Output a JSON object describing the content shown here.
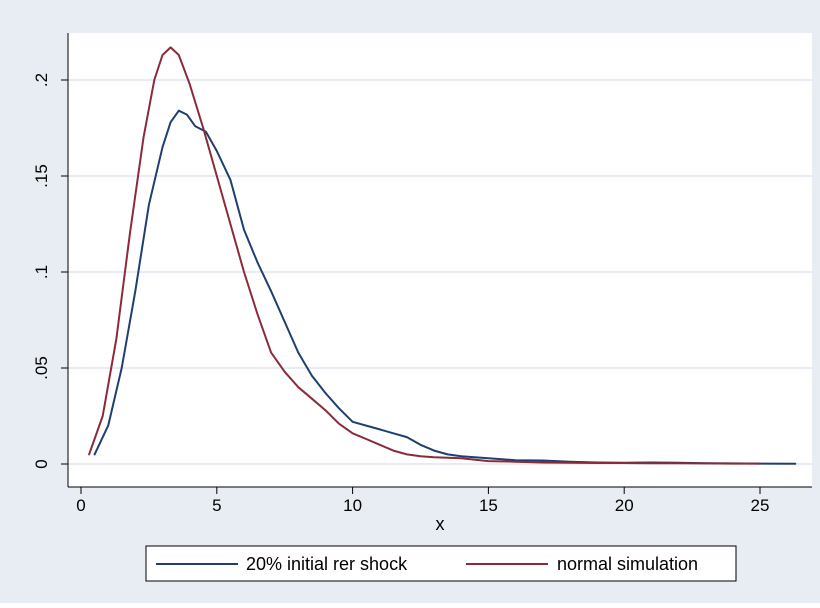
{
  "chart_data": {
    "type": "line",
    "title": "",
    "xlabel": "x",
    "ylabel": "",
    "xlim": [
      0,
      26.5
    ],
    "ylim": [
      0,
      0.22
    ],
    "x_ticks": [
      0,
      5,
      10,
      15,
      20,
      25
    ],
    "x_tick_labels": [
      "0",
      "5",
      "10",
      "15",
      "20",
      "25"
    ],
    "y_ticks": [
      0,
      0.05,
      0.1,
      0.15,
      0.2
    ],
    "y_tick_labels": [
      "0",
      ".05",
      ".1",
      ".15",
      ".2"
    ],
    "grid": "horizontal",
    "legend_position": "bottom",
    "background": "#e8edf3",
    "series": [
      {
        "name": "20% initial rer shock",
        "color": "#1f3f6e",
        "points": [
          [
            0.5,
            0.005
          ],
          [
            1.0,
            0.02
          ],
          [
            1.5,
            0.05
          ],
          [
            2.0,
            0.09
          ],
          [
            2.5,
            0.135
          ],
          [
            3.0,
            0.165
          ],
          [
            3.3,
            0.178
          ],
          [
            3.6,
            0.184
          ],
          [
            3.9,
            0.182
          ],
          [
            4.2,
            0.176
          ],
          [
            4.6,
            0.173
          ],
          [
            5.0,
            0.163
          ],
          [
            5.5,
            0.148
          ],
          [
            6.0,
            0.122
          ],
          [
            6.5,
            0.105
          ],
          [
            7.0,
            0.09
          ],
          [
            7.5,
            0.074
          ],
          [
            8.0,
            0.058
          ],
          [
            8.5,
            0.046
          ],
          [
            9.0,
            0.037
          ],
          [
            9.5,
            0.029
          ],
          [
            10.0,
            0.022
          ],
          [
            10.5,
            0.02
          ],
          [
            11.0,
            0.018
          ],
          [
            11.5,
            0.016
          ],
          [
            12.0,
            0.014
          ],
          [
            12.5,
            0.01
          ],
          [
            13.0,
            0.007
          ],
          [
            13.5,
            0.005
          ],
          [
            14.0,
            0.004
          ],
          [
            15.0,
            0.003
          ],
          [
            16.0,
            0.002
          ],
          [
            17.0,
            0.0018
          ],
          [
            18.0,
            0.0012
          ],
          [
            19.0,
            0.0008
          ],
          [
            20.0,
            0.0006
          ],
          [
            21.0,
            0.0008
          ],
          [
            22.0,
            0.0006
          ],
          [
            23.0,
            0.0004
          ],
          [
            24.0,
            0.0003
          ],
          [
            25.0,
            0.0002
          ],
          [
            26.3,
            0.0001
          ]
        ]
      },
      {
        "name": "normal simulation",
        "color": "#8b2a3a",
        "points": [
          [
            0.3,
            0.005
          ],
          [
            0.8,
            0.025
          ],
          [
            1.3,
            0.065
          ],
          [
            1.8,
            0.12
          ],
          [
            2.3,
            0.17
          ],
          [
            2.7,
            0.2
          ],
          [
            3.0,
            0.213
          ],
          [
            3.3,
            0.217
          ],
          [
            3.6,
            0.213
          ],
          [
            4.0,
            0.198
          ],
          [
            4.5,
            0.175
          ],
          [
            5.0,
            0.15
          ],
          [
            5.5,
            0.125
          ],
          [
            6.0,
            0.1
          ],
          [
            6.5,
            0.078
          ],
          [
            7.0,
            0.058
          ],
          [
            7.5,
            0.048
          ],
          [
            8.0,
            0.04
          ],
          [
            8.5,
            0.034
          ],
          [
            9.0,
            0.028
          ],
          [
            9.5,
            0.021
          ],
          [
            10.0,
            0.016
          ],
          [
            10.5,
            0.013
          ],
          [
            11.0,
            0.01
          ],
          [
            11.5,
            0.007
          ],
          [
            12.0,
            0.005
          ],
          [
            12.5,
            0.004
          ],
          [
            13.0,
            0.0035
          ],
          [
            14.0,
            0.003
          ],
          [
            15.0,
            0.0015
          ],
          [
            16.0,
            0.0012
          ],
          [
            17.0,
            0.0008
          ],
          [
            18.0,
            0.0006
          ],
          [
            19.0,
            0.0005
          ],
          [
            20.0,
            0.0005
          ],
          [
            21.0,
            0.0004
          ],
          [
            22.0,
            0.0004
          ],
          [
            23.0,
            0.0003
          ],
          [
            24.0,
            0.0002
          ],
          [
            25.0,
            0.0002
          ]
        ]
      }
    ]
  }
}
